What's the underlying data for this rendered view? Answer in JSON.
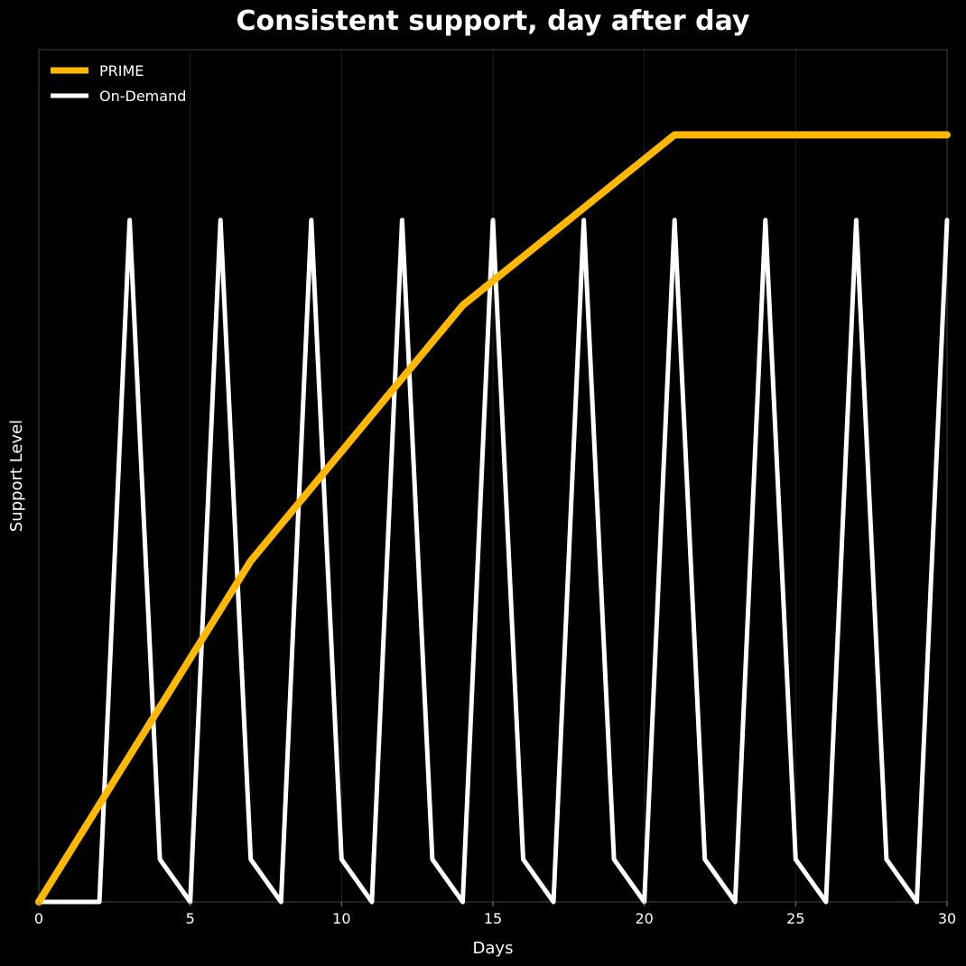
{
  "chart_data": {
    "type": "line",
    "title": "Consistent support, day after day",
    "xlabel": "Days",
    "ylabel": "Support Level",
    "xlim": [
      0,
      30
    ],
    "ylim": [
      0,
      100
    ],
    "x_ticks": [
      0,
      5,
      10,
      15,
      20,
      25,
      30
    ],
    "y_ticks_shown": false,
    "grid": "vertical",
    "legend_position": "upper-left",
    "background": "#000000",
    "series": [
      {
        "name": "PRIME",
        "color": "#FFB800",
        "x": [
          0,
          7,
          14,
          21,
          30
        ],
        "y": [
          0,
          40,
          70,
          90,
          90
        ]
      },
      {
        "name": "On-Demand",
        "color": "#FFFFFF",
        "x": [
          0,
          2,
          3,
          4,
          5,
          6,
          7,
          8,
          9,
          10,
          11,
          12,
          13,
          14,
          15,
          16,
          17,
          18,
          19,
          20,
          21,
          22,
          23,
          24,
          25,
          26,
          27,
          28,
          29,
          30
        ],
        "y": [
          0,
          0,
          80,
          5,
          0,
          80,
          5,
          0,
          80,
          5,
          0,
          80,
          5,
          0,
          80,
          5,
          0,
          80,
          5,
          0,
          80,
          5,
          0,
          80,
          5,
          0,
          80,
          5,
          0,
          80
        ]
      }
    ]
  }
}
